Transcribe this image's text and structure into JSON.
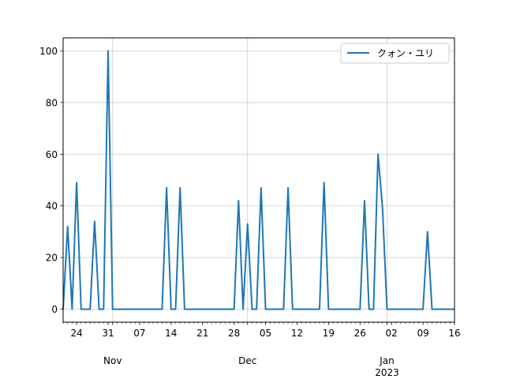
{
  "chart_data": {
    "type": "line",
    "title": "",
    "xlabel": "",
    "ylabel": "",
    "x_range": [
      "2022-10-21",
      "2023-01-16"
    ],
    "ylim": [
      -5,
      105
    ],
    "grid": true,
    "legend_placement": "top-right",
    "y_ticks": [
      0,
      20,
      40,
      60,
      80,
      100
    ],
    "x_major_ticks": [
      {
        "date": "2022-10-24",
        "label": "24"
      },
      {
        "date": "2022-10-31",
        "label": "31"
      },
      {
        "date": "2022-11-07",
        "label": "07"
      },
      {
        "date": "2022-11-14",
        "label": "14"
      },
      {
        "date": "2022-11-21",
        "label": "21"
      },
      {
        "date": "2022-11-28",
        "label": "28"
      },
      {
        "date": "2022-12-05",
        "label": "05"
      },
      {
        "date": "2022-12-12",
        "label": "12"
      },
      {
        "date": "2022-12-19",
        "label": "19"
      },
      {
        "date": "2022-12-26",
        "label": "26"
      },
      {
        "date": "2023-01-02",
        "label": "02"
      },
      {
        "date": "2023-01-09",
        "label": "09"
      },
      {
        "date": "2023-01-16",
        "label": "16"
      }
    ],
    "month_labels": [
      {
        "date": "2022-11-01",
        "label": "Nov"
      },
      {
        "date": "2022-12-01",
        "label": "Dec"
      },
      {
        "date": "2023-01-01",
        "label": "Jan",
        "sublabel": "2023"
      }
    ],
    "series": [
      {
        "name": "クォン・ユリ",
        "color": "#1f77b4",
        "points": [
          [
            "2022-10-21",
            0
          ],
          [
            "2022-10-22",
            32
          ],
          [
            "2022-10-23",
            0
          ],
          [
            "2022-10-24",
            49
          ],
          [
            "2022-10-25",
            0
          ],
          [
            "2022-10-26",
            0
          ],
          [
            "2022-10-27",
            0
          ],
          [
            "2022-10-28",
            34
          ],
          [
            "2022-10-29",
            0
          ],
          [
            "2022-10-30",
            0
          ],
          [
            "2022-10-31",
            100
          ],
          [
            "2022-11-01",
            0
          ],
          [
            "2022-11-02",
            0
          ],
          [
            "2022-11-03",
            0
          ],
          [
            "2022-11-04",
            0
          ],
          [
            "2022-11-05",
            0
          ],
          [
            "2022-11-06",
            0
          ],
          [
            "2022-11-07",
            0
          ],
          [
            "2022-11-08",
            0
          ],
          [
            "2022-11-09",
            0
          ],
          [
            "2022-11-10",
            0
          ],
          [
            "2022-11-11",
            0
          ],
          [
            "2022-11-12",
            0
          ],
          [
            "2022-11-13",
            47
          ],
          [
            "2022-11-14",
            0
          ],
          [
            "2022-11-15",
            0
          ],
          [
            "2022-11-16",
            47
          ],
          [
            "2022-11-17",
            0
          ],
          [
            "2022-11-18",
            0
          ],
          [
            "2022-11-19",
            0
          ],
          [
            "2022-11-20",
            0
          ],
          [
            "2022-11-21",
            0
          ],
          [
            "2022-11-22",
            0
          ],
          [
            "2022-11-23",
            0
          ],
          [
            "2022-11-24",
            0
          ],
          [
            "2022-11-25",
            0
          ],
          [
            "2022-11-26",
            0
          ],
          [
            "2022-11-27",
            0
          ],
          [
            "2022-11-28",
            0
          ],
          [
            "2022-11-29",
            42
          ],
          [
            "2022-11-30",
            0
          ],
          [
            "2022-12-01",
            33
          ],
          [
            "2022-12-02",
            0
          ],
          [
            "2022-12-03",
            0
          ],
          [
            "2022-12-04",
            47
          ],
          [
            "2022-12-05",
            0
          ],
          [
            "2022-12-06",
            0
          ],
          [
            "2022-12-07",
            0
          ],
          [
            "2022-12-08",
            0
          ],
          [
            "2022-12-09",
            0
          ],
          [
            "2022-12-10",
            47
          ],
          [
            "2022-12-11",
            0
          ],
          [
            "2022-12-12",
            0
          ],
          [
            "2022-12-13",
            0
          ],
          [
            "2022-12-14",
            0
          ],
          [
            "2022-12-15",
            0
          ],
          [
            "2022-12-16",
            0
          ],
          [
            "2022-12-17",
            0
          ],
          [
            "2022-12-18",
            49
          ],
          [
            "2022-12-19",
            0
          ],
          [
            "2022-12-20",
            0
          ],
          [
            "2022-12-21",
            0
          ],
          [
            "2022-12-22",
            0
          ],
          [
            "2022-12-23",
            0
          ],
          [
            "2022-12-24",
            0
          ],
          [
            "2022-12-25",
            0
          ],
          [
            "2022-12-26",
            0
          ],
          [
            "2022-12-27",
            42
          ],
          [
            "2022-12-28",
            0
          ],
          [
            "2022-12-29",
            0
          ],
          [
            "2022-12-30",
            60
          ],
          [
            "2022-12-31",
            39
          ],
          [
            "2023-01-01",
            0
          ],
          [
            "2023-01-02",
            0
          ],
          [
            "2023-01-03",
            0
          ],
          [
            "2023-01-04",
            0
          ],
          [
            "2023-01-05",
            0
          ],
          [
            "2023-01-06",
            0
          ],
          [
            "2023-01-07",
            0
          ],
          [
            "2023-01-08",
            0
          ],
          [
            "2023-01-09",
            0
          ],
          [
            "2023-01-10",
            30
          ],
          [
            "2023-01-11",
            0
          ],
          [
            "2023-01-12",
            0
          ],
          [
            "2023-01-13",
            0
          ],
          [
            "2023-01-14",
            0
          ],
          [
            "2023-01-15",
            0
          ],
          [
            "2023-01-16",
            0
          ]
        ]
      }
    ]
  },
  "colors": {
    "line": "#1f77b4",
    "grid": "#cccccc",
    "axis": "#000000",
    "background": "#ffffff"
  }
}
